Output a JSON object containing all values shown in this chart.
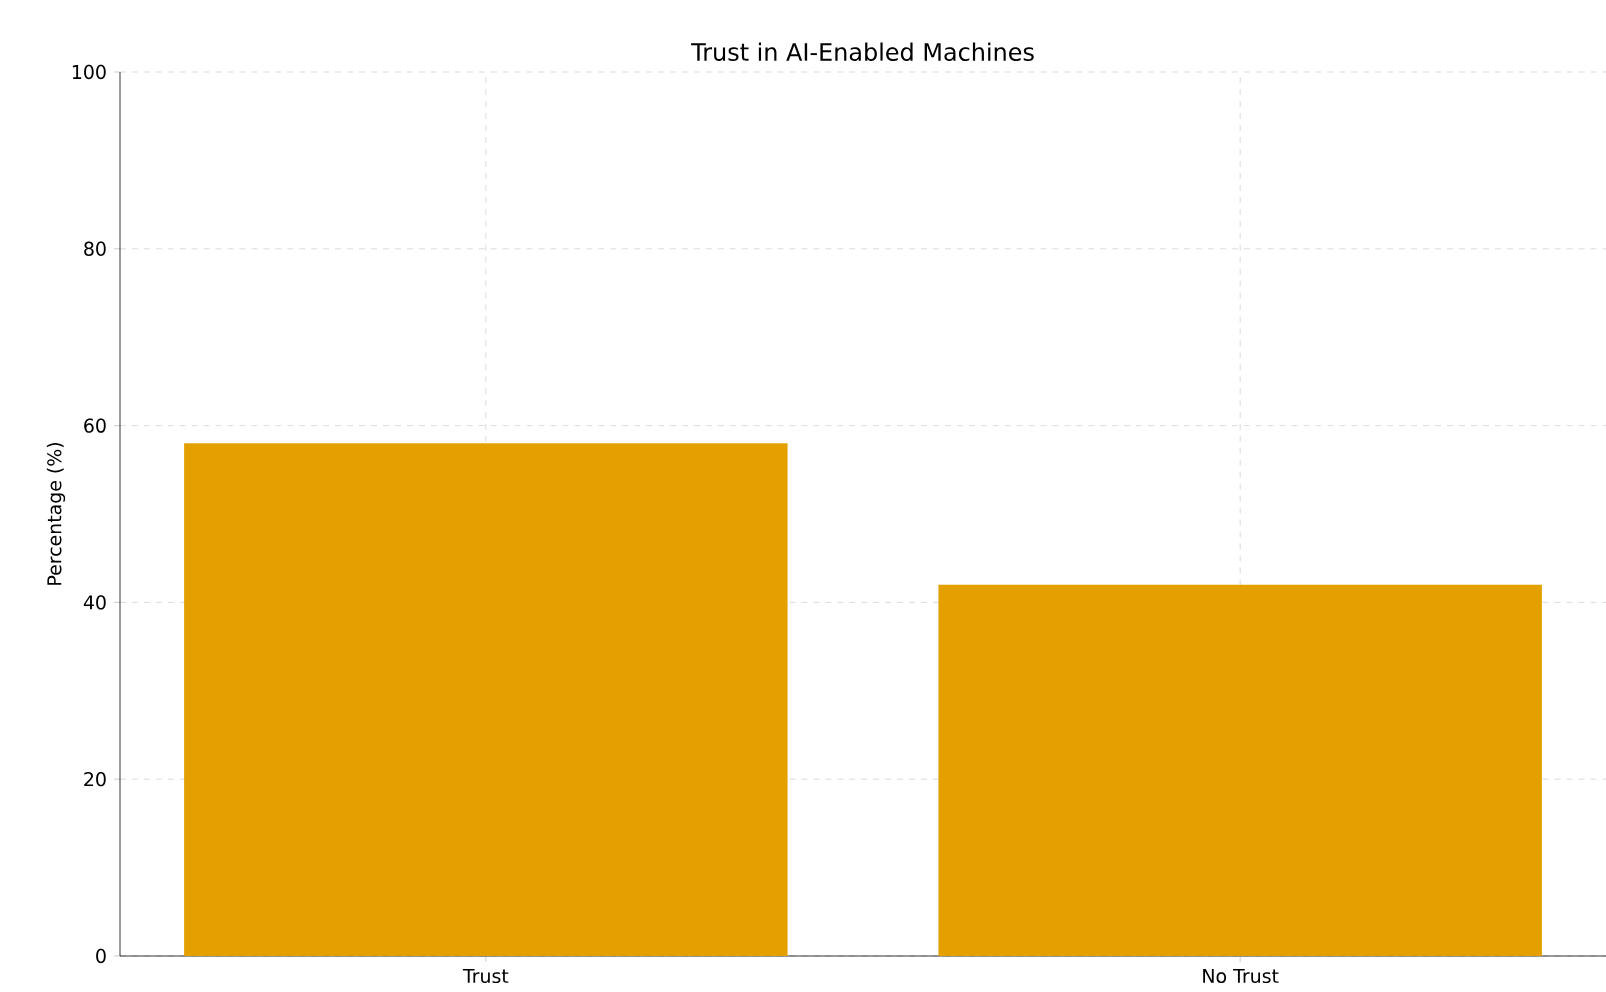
{
  "chart_data": {
    "type": "bar",
    "title": "Trust in AI-Enabled Machines",
    "ylabel": "Percentage (%)",
    "categories": [
      "Trust",
      "No Trust"
    ],
    "values": [
      58,
      42
    ],
    "color": "#e3a000",
    "ylim": [
      0,
      100
    ],
    "yticks": [
      0,
      20,
      40,
      60,
      80,
      100
    ],
    "grid": true
  }
}
